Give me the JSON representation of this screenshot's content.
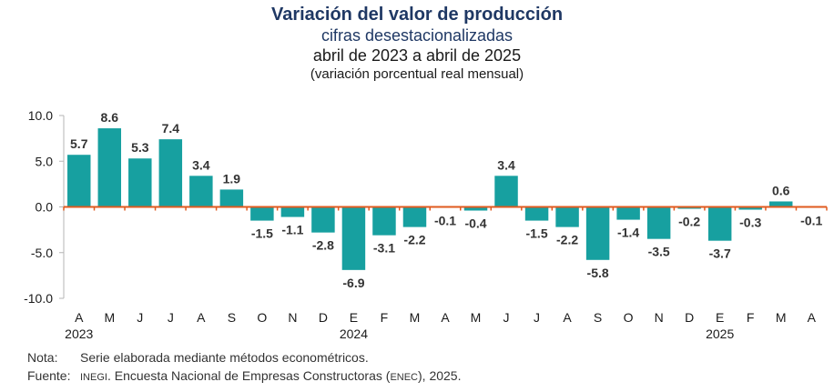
{
  "chart_data": {
    "type": "bar",
    "title": "Variación del valor de producción",
    "subtitle_lines": [
      "cifras desestacionalizadas",
      "abril de 2023 a abril de 2025",
      "(variación porcentual real mensual)"
    ],
    "categories": [
      "A",
      "M",
      "J",
      "J",
      "A",
      "S",
      "O",
      "N",
      "D",
      "E",
      "F",
      "M",
      "A",
      "M",
      "J",
      "J",
      "A",
      "S",
      "O",
      "N",
      "D",
      "E",
      "F",
      "M",
      "A"
    ],
    "year_labels": [
      {
        "index": 0,
        "label": "2023"
      },
      {
        "index": 9,
        "label": "2024"
      },
      {
        "index": 21,
        "label": "2025"
      }
    ],
    "values": [
      5.7,
      8.6,
      5.3,
      7.4,
      3.4,
      1.9,
      -1.5,
      -1.1,
      -2.8,
      -6.9,
      -3.1,
      -2.2,
      -0.1,
      -0.4,
      3.4,
      -1.5,
      -2.2,
      -5.8,
      -1.4,
      -3.5,
      -0.2,
      -3.7,
      -0.3,
      0.6,
      -0.1
    ],
    "value_labels": [
      "5.7",
      "8.6",
      "5.3",
      "7.4",
      "3.4",
      "1.9",
      "-1.5",
      "-1.1",
      "-2.8",
      "-6.9",
      "-3.1",
      "-2.2",
      "-0.1",
      "-0.4",
      "3.4",
      "-1.5",
      "-2.2",
      "-5.8",
      "-1.4",
      "-3.5",
      "-0.2",
      "-3.7",
      "-0.3",
      "0.6",
      "-0.1"
    ],
    "yticks": [
      10,
      5,
      0,
      -5,
      -10
    ],
    "ytick_labels": [
      "10.0",
      "5.0",
      "0.0",
      "-5.0",
      "-10.0"
    ],
    "ylim": [
      -10,
      10
    ],
    "grid": false,
    "colors": {
      "bar": "#17a0a0",
      "zero_line": "#e05a1e",
      "axis": "#b5b5b5",
      "title": "#1f3864"
    }
  },
  "notes": {
    "nota_label": "Nota:",
    "nota_text": "Serie elaborada mediante métodos econométricos.",
    "fuente_label": "Fuente:",
    "fuente_org": "INEGI",
    "fuente_mid": ". Encuesta Nacional de Empresas Constructoras (",
    "fuente_abbr": "ENEC",
    "fuente_end": "), 2025."
  }
}
